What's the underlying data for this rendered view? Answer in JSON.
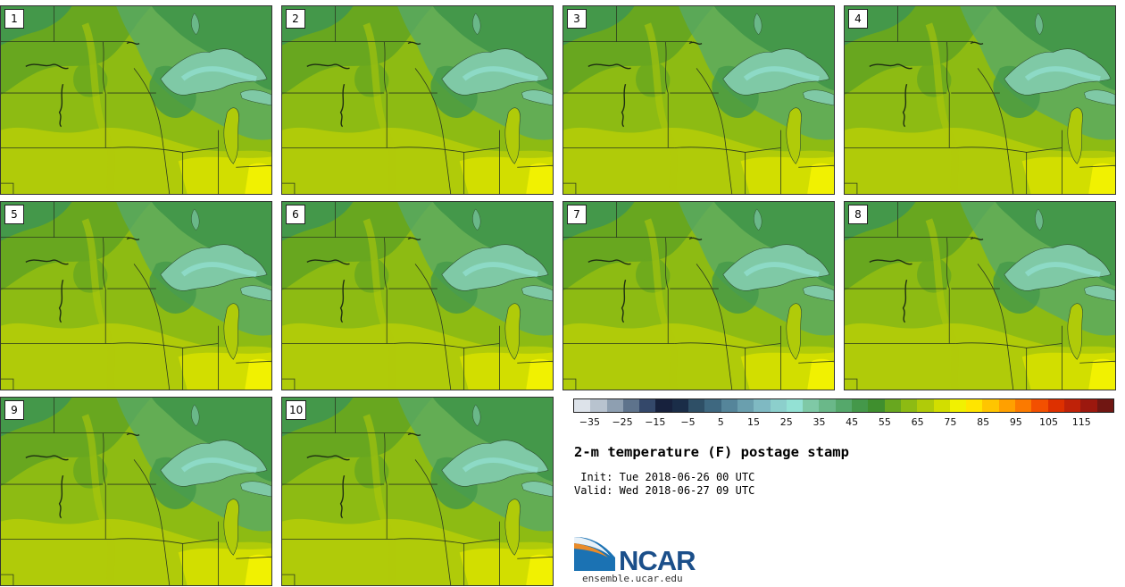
{
  "panels": [
    {
      "label": "1"
    },
    {
      "label": "2"
    },
    {
      "label": "3"
    },
    {
      "label": "4"
    },
    {
      "label": "5"
    },
    {
      "label": "6"
    },
    {
      "label": "7"
    },
    {
      "label": "8"
    },
    {
      "label": "9"
    },
    {
      "label": "10"
    }
  ],
  "colorbar": {
    "colors": [
      "#dde3ea",
      "#b8c3cf",
      "#8e9fb1",
      "#5e738c",
      "#34486a",
      "#17213d",
      "#1a2d48",
      "#2e4f66",
      "#3e6880",
      "#55859a",
      "#6a9fae",
      "#7fb9c2",
      "#8ccfcc",
      "#93e1d4",
      "#7fc9a6",
      "#6ab889",
      "#55a86b",
      "#44984a",
      "#3f8f2e",
      "#68a71f",
      "#8dbb13",
      "#b0cb09",
      "#d2de00",
      "#f1f101",
      "#ffe500",
      "#ffc500",
      "#ffa000",
      "#fb7a00",
      "#f35000",
      "#dd3000",
      "#bf2208",
      "#9c180e",
      "#701612"
    ],
    "tick_labels": [
      "−35",
      "−25",
      "−15",
      "−5",
      "5",
      "15",
      "25",
      "35",
      "45",
      "55",
      "65",
      "75",
      "85",
      "95",
      "105",
      "115"
    ]
  },
  "title": "2-m temperature (F) postage stamp",
  "init": " Init: Tue 2018-06-26 00 UTC",
  "valid": "Valid: Wed 2018-06-27 09 UTC",
  "logo": {
    "text": "NCAR",
    "url": "ensemble.ucar.edu"
  }
}
